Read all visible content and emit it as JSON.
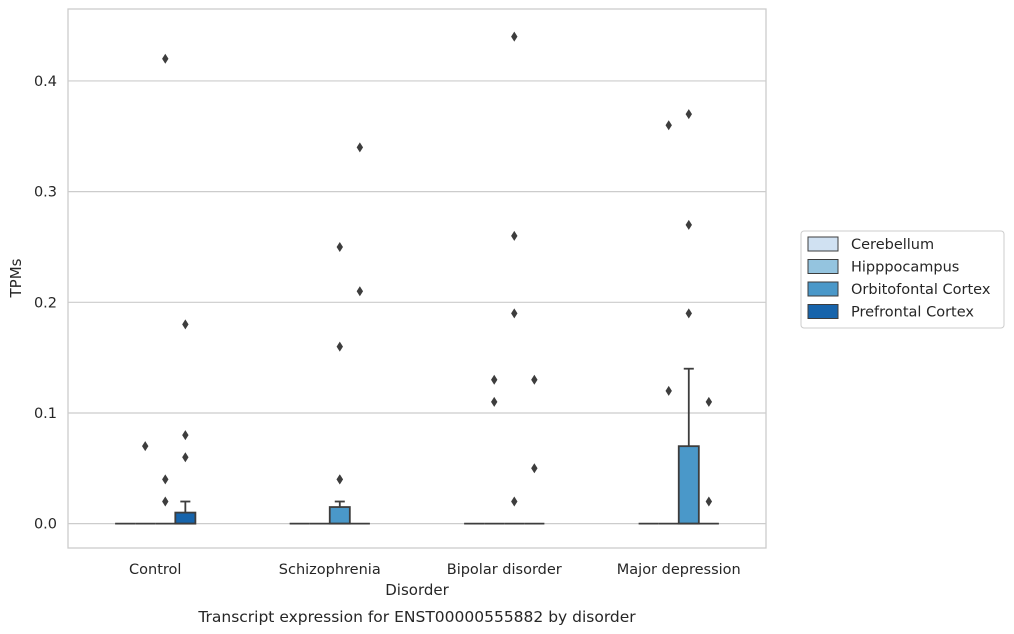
{
  "chart_data": {
    "type": "box",
    "caption": "Transcript expression for ENST00000555882 by disorder",
    "xlabel": "Disorder",
    "ylabel": "TPMs",
    "ylim": [
      -0.022,
      0.465
    ],
    "yticks": [
      0.0,
      0.1,
      0.2,
      0.3,
      0.4
    ],
    "ytick_labels": [
      "0.0",
      "0.1",
      "0.2",
      "0.3",
      "0.4"
    ],
    "grid": "horizontal",
    "legend_position": "right",
    "categories": [
      "Control",
      "Schizophrenia",
      "Bipolar disorder",
      "Major depression"
    ],
    "series": [
      {
        "name": "Cerebellum",
        "color": "#d0e1f2",
        "boxes": [
          {
            "q1": 0,
            "median": 0,
            "q3": 0,
            "whisker_low": 0,
            "whisker_high": 0,
            "outliers": []
          },
          {
            "q1": 0,
            "median": 0,
            "q3": 0,
            "whisker_low": 0,
            "whisker_high": 0,
            "outliers": []
          },
          {
            "q1": 0,
            "median": 0,
            "q3": 0,
            "whisker_low": 0,
            "whisker_high": 0,
            "outliers": []
          },
          {
            "q1": 0,
            "median": 0,
            "q3": 0,
            "whisker_low": 0,
            "whisker_high": 0,
            "outliers": []
          }
        ]
      },
      {
        "name": "Hipppocampus",
        "color": "#94c4df",
        "boxes": [
          {
            "q1": 0,
            "median": 0,
            "q3": 0,
            "whisker_low": 0,
            "whisker_high": 0,
            "outliers": [
              0.07
            ]
          },
          {
            "q1": 0,
            "median": 0,
            "q3": 0,
            "whisker_low": 0,
            "whisker_high": 0,
            "outliers": []
          },
          {
            "q1": 0,
            "median": 0,
            "q3": 0,
            "whisker_low": 0,
            "whisker_high": 0,
            "outliers": [
              0.13,
              0.11
            ]
          },
          {
            "q1": 0,
            "median": 0,
            "q3": 0,
            "whisker_low": 0,
            "whisker_high": 0,
            "outliers": [
              0.36,
              0.12
            ]
          }
        ]
      },
      {
        "name": "Orbitofontal Cortex",
        "color": "#4a98c9",
        "boxes": [
          {
            "q1": 0,
            "median": 0,
            "q3": 0,
            "whisker_low": 0,
            "whisker_high": 0,
            "outliers": [
              0.42,
              0.04,
              0.02
            ]
          },
          {
            "q1": 0,
            "median": 0,
            "q3": 0.015,
            "whisker_low": 0,
            "whisker_high": 0.02,
            "outliers": [
              0.04,
              0.25,
              0.16,
              0.04
            ]
          },
          {
            "q1": 0,
            "median": 0,
            "q3": 0,
            "whisker_low": 0,
            "whisker_high": 0,
            "outliers": [
              0.44,
              0.26,
              0.19,
              0.02
            ]
          },
          {
            "q1": 0,
            "median": 0,
            "q3": 0.07,
            "whisker_low": 0,
            "whisker_high": 0.14,
            "outliers": [
              0.19,
              0.37,
              0.27
            ]
          }
        ]
      },
      {
        "name": "Prefrontal Cortex",
        "color": "#1764ab",
        "boxes": [
          {
            "q1": 0,
            "median": 0,
            "q3": 0.01,
            "whisker_low": 0,
            "whisker_high": 0.02,
            "outliers": [
              0.18,
              0.08,
              0.06
            ]
          },
          {
            "q1": 0,
            "median": 0,
            "q3": 0,
            "whisker_low": 0,
            "whisker_high": 0,
            "outliers": [
              0.34,
              0.21
            ]
          },
          {
            "q1": 0,
            "median": 0,
            "q3": 0,
            "whisker_low": 0,
            "whisker_high": 0,
            "outliers": [
              0.13,
              0.05
            ]
          },
          {
            "q1": 0,
            "median": 0,
            "q3": 0,
            "whisker_low": 0,
            "whisker_high": 0,
            "outliers": [
              0.11,
              0.02
            ]
          }
        ]
      }
    ]
  }
}
